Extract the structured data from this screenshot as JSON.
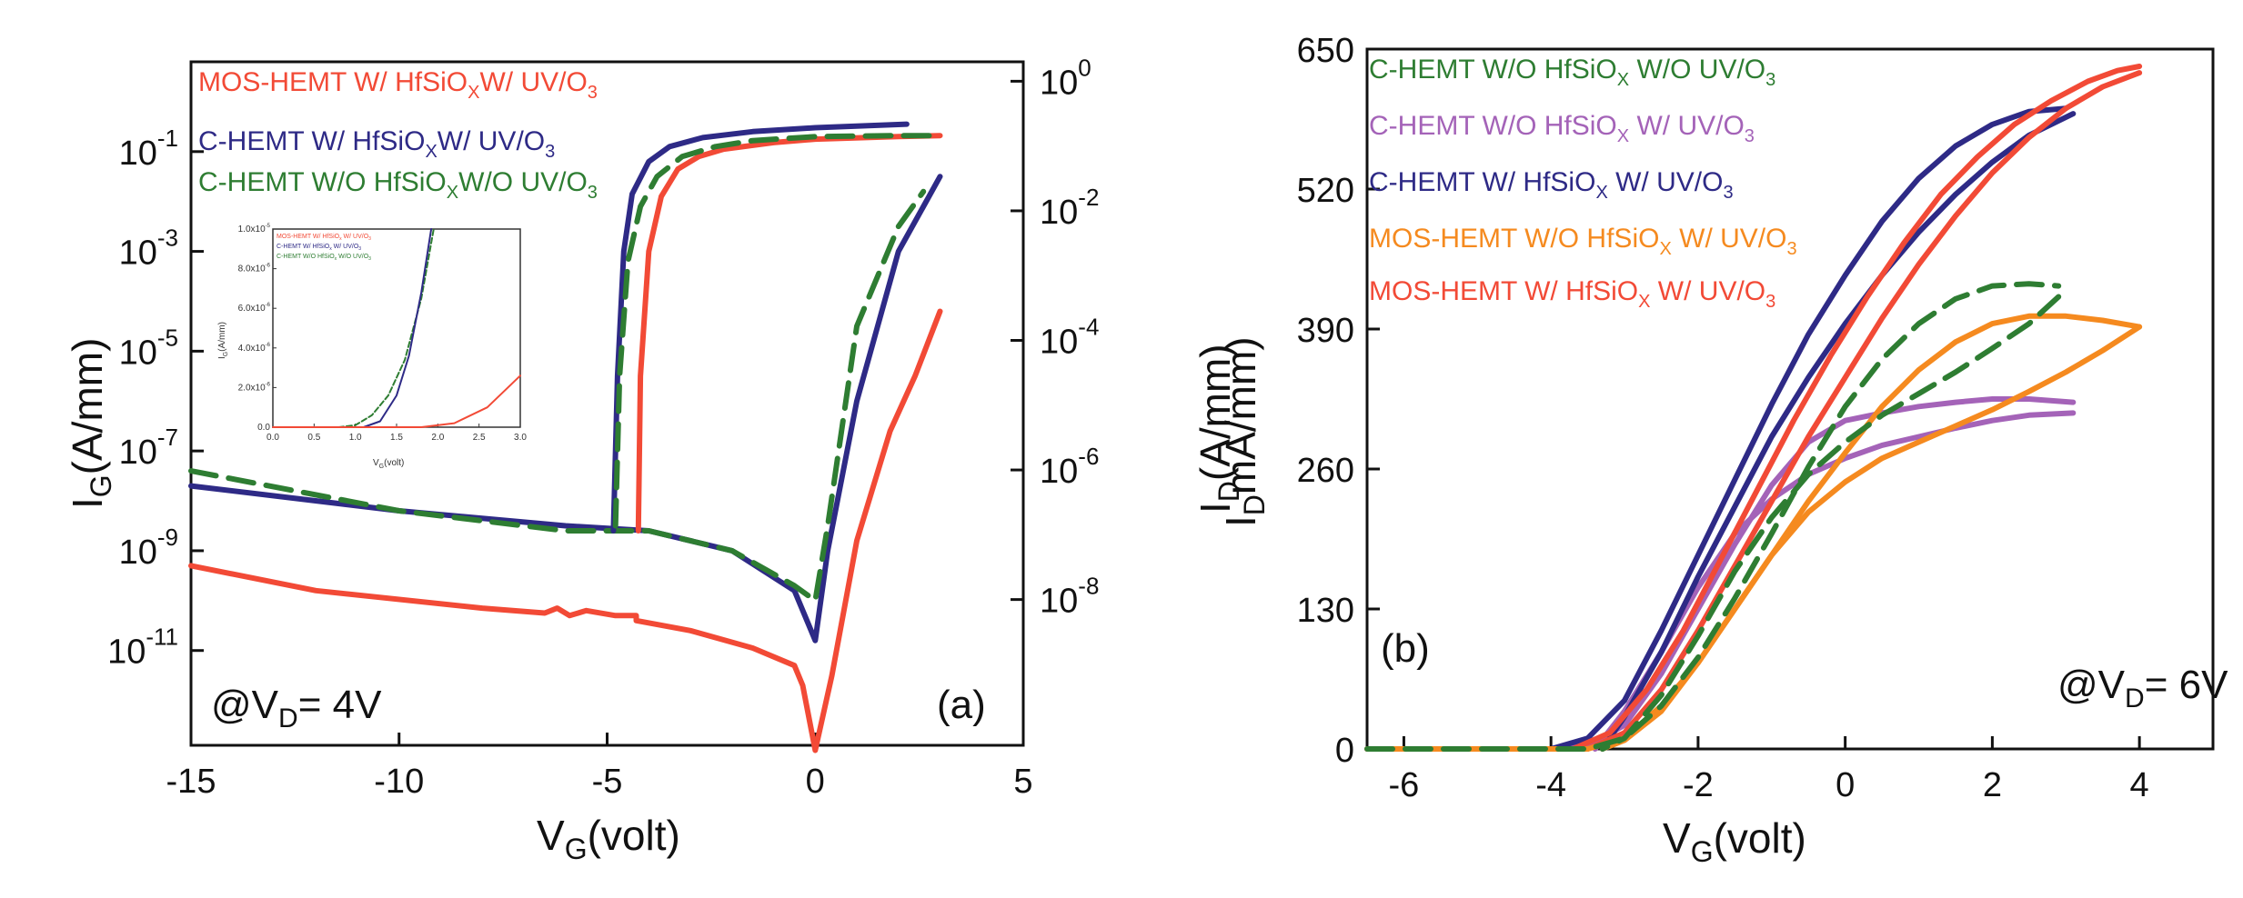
{
  "chart_data": [
    {
      "panel": "a",
      "type": "line",
      "xlabel": "V",
      "xlabel_sub": "G",
      "xlabel_tail": "(volt)",
      "ylabel_left": "I",
      "ylabel_left_sub": "G",
      "ylabel_left_tail": "(A/mm)",
      "ylabel_right": "I",
      "ylabel_right_sub": "D",
      "ylabel_right_tail": "(A/mm)",
      "xlim": [
        -15,
        5
      ],
      "ylim_left_log10": [
        -12.9,
        0.8
      ],
      "ylim_right_log10": [
        -10.25,
        0.3
      ],
      "x_ticks": [
        "-15",
        "-10",
        "-5",
        "0",
        "5"
      ],
      "y_left_ticks": [
        {
          "m": "10",
          "e": "-1",
          "v": -1
        },
        {
          "m": "10",
          "e": "-3",
          "v": -3
        },
        {
          "m": "10",
          "e": "-5",
          "v": -5
        },
        {
          "m": "10",
          "e": "-7",
          "v": -7
        },
        {
          "m": "10",
          "e": "-9",
          "v": -9
        },
        {
          "m": "10",
          "e": "-11",
          "v": -11
        }
      ],
      "y_right_ticks": [
        {
          "m": "10",
          "e": "0",
          "v": 0
        },
        {
          "m": "10",
          "e": "-2",
          "v": -2
        },
        {
          "m": "10",
          "e": "-4",
          "v": -4
        },
        {
          "m": "10",
          "e": "-6",
          "v": -6
        },
        {
          "m": "10",
          "e": "-8",
          "v": -8
        }
      ],
      "annotation": {
        "pre": "@V",
        "sub": "D",
        "post": "= 4V"
      },
      "panel_label": "(a)",
      "legend": [
        {
          "pre": "MOS-HEMT W/ HfSiO",
          "sub": "X",
          "mid": "W/ UV/O",
          "sub2": "3",
          "color": "#f24a36"
        },
        {
          "pre": "C-HEMT W/ HfSiO",
          "sub": "X",
          "mid": "W/ UV/O",
          "sub2": "3",
          "color": "#2e2a86"
        },
        {
          "pre": "C-HEMT W/O HfSiO",
          "sub": "X",
          "mid": "W/O UV/O",
          "sub2": "3",
          "color": "#2e7d32"
        }
      ],
      "series": [
        {
          "name": "MOS-HEMT W/ HfSiOX W/ UV/O3 (IG)",
          "axis": "left",
          "color": "#f24a36",
          "dash": false,
          "x": [
            -15,
            -12,
            -8,
            -6.5,
            -6.2,
            -5.9,
            -5.5,
            -4.8,
            -4.3,
            -4.3,
            -3,
            -1.5,
            -0.5,
            -0.3,
            0,
            0.4,
            1,
            1.8,
            2.4,
            3
          ],
          "y": [
            -9.3,
            -9.8,
            -10.15,
            -10.25,
            -10.15,
            -10.3,
            -10.2,
            -10.3,
            -10.3,
            -10.4,
            -10.6,
            -10.95,
            -11.3,
            -11.7,
            -13,
            -11.5,
            -8.8,
            -6.6,
            -5.5,
            -4.2
          ]
        },
        {
          "name": "C-HEMT W/ HfSiOX W/ UV/O3 (IG)",
          "axis": "left",
          "color": "#2e2a86",
          "dash": false,
          "x": [
            -15,
            -10,
            -6,
            -4,
            -2,
            -0.5,
            0,
            0.3,
            1,
            2,
            3
          ],
          "y": [
            -7.7,
            -8.2,
            -8.5,
            -8.6,
            -9.0,
            -9.8,
            -10.8,
            -9.0,
            -6.0,
            -3.0,
            -1.5
          ]
        },
        {
          "name": "C-HEMT W/O HfSiOX W/O UV/O3 (IG)",
          "axis": "left",
          "color": "#2e7d32",
          "dash": true,
          "x": [
            -15,
            -10,
            -6,
            -4,
            -2,
            -0.5,
            0,
            0.3,
            1,
            2,
            2.6
          ],
          "y": [
            -7.4,
            -8.2,
            -8.6,
            -8.6,
            -9.0,
            -9.7,
            -10.0,
            -8.5,
            -4.5,
            -2.5,
            -1.8
          ]
        },
        {
          "name": "MOS-HEMT W/ HfSiOX W/ UV/O3 (ID)",
          "axis": "left",
          "color": "#f24a36",
          "dash": false,
          "x": [
            -4.25,
            -4.2,
            -4.0,
            -3.7,
            -3.3,
            -2.8,
            -2.2,
            -1.0,
            0,
            2,
            3
          ],
          "y": [
            -8.6,
            -5.5,
            -3.0,
            -1.9,
            -1.35,
            -1.1,
            -0.95,
            -0.82,
            -0.75,
            -0.7,
            -0.68
          ]
        },
        {
          "name": "C-HEMT W/ HfSiOX W/ UV/O3 (ID)",
          "axis": "left",
          "color": "#2e2a86",
          "dash": false,
          "x": [
            -4.85,
            -4.75,
            -4.6,
            -4.4,
            -4.0,
            -3.5,
            -2.7,
            -1.5,
            0,
            2.2
          ],
          "y": [
            -8.6,
            -5.5,
            -3.0,
            -1.85,
            -1.2,
            -0.9,
            -0.72,
            -0.6,
            -0.52,
            -0.45
          ]
        },
        {
          "name": "C-HEMT W/O HfSiOX W/O UV/O3 (ID)",
          "axis": "left",
          "color": "#2e7d32",
          "dash": true,
          "x": [
            -4.8,
            -4.7,
            -4.5,
            -4.2,
            -3.8,
            -3.2,
            -2.4,
            -1.5,
            0,
            2,
            3
          ],
          "y": [
            -8.5,
            -5.5,
            -3.2,
            -2.1,
            -1.5,
            -1.1,
            -0.9,
            -0.78,
            -0.7,
            -0.68,
            -0.68
          ]
        }
      ]
    },
    {
      "panel": "a-inset",
      "type": "line",
      "xlabel": "V",
      "xlabel_sub": "G",
      "xlabel_tail": "(volt)",
      "ylabel": "I",
      "ylabel_sub": "G",
      "ylabel_tail": "(A/mm)",
      "xlim": [
        0,
        3
      ],
      "ylim": [
        0,
        1e-05
      ],
      "x_ticks": [
        "0.0",
        "0.5",
        "1.0",
        "1.5",
        "2.0",
        "2.5",
        "3.0"
      ],
      "y_ticks": [
        {
          "m": "0.0",
          "e": "",
          "v": 0
        },
        {
          "m": "2.0x10",
          "e": "-6",
          "v": 2e-06
        },
        {
          "m": "4.0x10",
          "e": "-6",
          "v": 4e-06
        },
        {
          "m": "6.0x10",
          "e": "-6",
          "v": 6e-06
        },
        {
          "m": "8.0x10",
          "e": "-6",
          "v": 8e-06
        },
        {
          "m": "1.0x10",
          "e": "-5",
          "v": 1e-05
        }
      ],
      "legend": [
        {
          "pre": "MOS-HEMT W/ HfSiO",
          "sub": "x",
          "mid": " W/ UV/O",
          "sub2": "3",
          "color": "#f24a36"
        },
        {
          "pre": "C-HEMT W/ HfSiO",
          "sub": "x",
          "mid": " W/ UV/O",
          "sub2": "3",
          "color": "#2e2a86"
        },
        {
          "pre": "C-HEMT W/O HfSiO",
          "sub": "x",
          "mid": " W/O UV/O",
          "sub2": "3",
          "color": "#2e7d32"
        }
      ],
      "series": [
        {
          "name": "C-HEMT W/O",
          "color": "#2e7d32",
          "dash": true,
          "x": [
            0,
            0.8,
            1.0,
            1.2,
            1.4,
            1.6,
            1.8,
            1.95
          ],
          "y": [
            0,
            0,
            1e-07,
            6e-07,
            1.6e-06,
            3.4e-06,
            6.5e-06,
            1e-05
          ]
        },
        {
          "name": "C-HEMT W/",
          "color": "#2e2a86",
          "dash": false,
          "x": [
            0,
            1.1,
            1.3,
            1.5,
            1.65,
            1.8,
            1.92
          ],
          "y": [
            0,
            0,
            3e-07,
            1.6e-06,
            3.6e-06,
            6.8e-06,
            1e-05
          ]
        },
        {
          "name": "MOS-HEMT W/",
          "color": "#f24a36",
          "dash": false,
          "x": [
            0,
            1.8,
            2.2,
            2.6,
            3.0
          ],
          "y": [
            0,
            0,
            2e-07,
            1e-06,
            2.6e-06
          ]
        }
      ]
    },
    {
      "panel": "b",
      "type": "line",
      "xlabel": "V",
      "xlabel_sub": "G",
      "xlabel_tail": "(volt)",
      "ylabel": "I",
      "ylabel_sub": "D",
      "ylabel_tail": "mA/mm)",
      "xlim": [
        -6.5,
        5
      ],
      "ylim": [
        0,
        650
      ],
      "x_ticks": [
        -6,
        -4,
        -2,
        0,
        2,
        4
      ],
      "y_ticks": [
        0,
        130,
        260,
        390,
        520,
        650
      ],
      "annotation": {
        "pre": "@V",
        "sub": "D",
        "post": "= 6V"
      },
      "panel_label": "(b)",
      "legend": [
        {
          "pre": "C-HEMT W/O HfSiO",
          "sub": "X",
          "mid": " W/O UV/O",
          "sub2": "3",
          "color": "#2e7d32"
        },
        {
          "pre": "C-HEMT W/O HfSiO",
          "sub": "X",
          "mid": " W/ UV/O",
          "sub2": "3",
          "color": "#a463b8"
        },
        {
          "pre": "C-HEMT W/ HfSiO",
          "sub": "X",
          "mid": " W/ UV/O",
          "sub2": "3",
          "color": "#2e2a86"
        },
        {
          "pre": "MOS-HEMT W/O HfSiO",
          "sub": "X",
          "mid": " W/ UV/O",
          "sub2": "3",
          "color": "#f58a1f"
        },
        {
          "pre": "MOS-HEMT W/ HfSiO",
          "sub": "X",
          "mid": " W/ UV/O",
          "sub2": "3",
          "color": "#f24a36"
        }
      ],
      "series": [
        {
          "name": "C-HEMT W/O HfSiOX W/ UV/O3 (forward)",
          "color": "#a463b8",
          "dash": false,
          "x": [
            -6.5,
            -4,
            -3.5,
            -3,
            -2.5,
            -2,
            -1.5,
            -1,
            -0.5,
            0,
            0.5,
            1,
            1.5,
            2,
            2.5,
            3.1
          ],
          "y": [
            0,
            0,
            3,
            22,
            70,
            130,
            190,
            245,
            285,
            305,
            312,
            318,
            322,
            325,
            325,
            322
          ]
        },
        {
          "name": "C-HEMT W/O HfSiOX W/ UV/O3 (reverse)",
          "color": "#a463b8",
          "dash": false,
          "x": [
            3.1,
            2.5,
            2,
            1.5,
            1,
            0.5,
            0,
            -0.5,
            -1,
            -1.5,
            -2,
            -2.5,
            -3,
            -3.4
          ],
          "y": [
            312,
            310,
            305,
            298,
            290,
            282,
            270,
            255,
            232,
            200,
            150,
            90,
            35,
            0
          ]
        },
        {
          "name": "C-HEMT W/ HfSiOX W/ UV/O3 (forward)",
          "color": "#2e2a86",
          "dash": false,
          "x": [
            -6.5,
            -4,
            -3.5,
            -3,
            -2.5,
            -2,
            -1.5,
            -1,
            -0.5,
            0,
            0.5,
            1,
            1.5,
            2,
            2.5,
            3
          ],
          "y": [
            0,
            0,
            10,
            45,
            110,
            180,
            250,
            320,
            385,
            440,
            490,
            530,
            560,
            580,
            592,
            595
          ]
        },
        {
          "name": "C-HEMT W/ HfSiOX W/ UV/O3 (reverse)",
          "color": "#2e2a86",
          "dash": false,
          "x": [
            3.1,
            2.5,
            2,
            1.5,
            1,
            0.5,
            0,
            -0.5,
            -1,
            -1.5,
            -2,
            -2.5,
            -3,
            -3.3
          ],
          "y": [
            590,
            570,
            545,
            515,
            480,
            440,
            395,
            345,
            290,
            225,
            160,
            90,
            30,
            0
          ]
        },
        {
          "name": "MOS-HEMT W/ HfSiOX W/ UV/O3 (forward)",
          "color": "#f24a36",
          "dash": false,
          "x": [
            -6.5,
            -3.7,
            -3.2,
            -2.7,
            -2.2,
            -1.7,
            -1.2,
            -0.7,
            -0.2,
            0.3,
            0.8,
            1.3,
            1.8,
            2.3,
            2.8,
            3.3,
            3.7,
            4.0
          ],
          "y": [
            0,
            0,
            15,
            55,
            110,
            175,
            240,
            305,
            365,
            420,
            470,
            515,
            550,
            580,
            602,
            620,
            630,
            634
          ]
        },
        {
          "name": "MOS-HEMT W/ HfSiOX W/ UV/O3 (reverse)",
          "color": "#f24a36",
          "dash": false,
          "x": [
            4.0,
            3.5,
            3,
            2.5,
            2,
            1.5,
            1,
            0.5,
            0,
            -0.5,
            -1,
            -1.5,
            -2,
            -2.5,
            -3,
            -3.5
          ],
          "y": [
            628,
            615,
            595,
            568,
            535,
            495,
            450,
            400,
            345,
            290,
            230,
            170,
            110,
            55,
            15,
            0
          ]
        },
        {
          "name": "MOS-HEMT W/O HfSiOX W/ UV/O3 (forward)",
          "color": "#f58a1f",
          "dash": false,
          "x": [
            -6.5,
            -3.5,
            -3,
            -2.5,
            -2,
            -1.5,
            -1,
            -0.5,
            0,
            0.5,
            1,
            1.5,
            2,
            2.5,
            3,
            3.5,
            4.0
          ],
          "y": [
            0,
            0,
            10,
            40,
            80,
            130,
            180,
            230,
            275,
            318,
            352,
            378,
            395,
            402,
            402,
            398,
            392
          ]
        },
        {
          "name": "MOS-HEMT W/O HfSiOX W/ UV/O3 (reverse)",
          "color": "#f58a1f",
          "dash": false,
          "x": [
            4.0,
            3.5,
            3,
            2.5,
            2,
            1.5,
            1,
            0.5,
            0,
            -0.5,
            -1,
            -1.5,
            -2,
            -2.5,
            -3,
            -3.3
          ],
          "y": [
            392,
            370,
            350,
            332,
            315,
            300,
            285,
            270,
            248,
            220,
            180,
            130,
            80,
            35,
            8,
            0
          ]
        },
        {
          "name": "C-HEMT W/O HfSiOX W/O UV/O3 (forward)",
          "color": "#2e7d32",
          "dash": true,
          "x": [
            -6.5,
            -3.5,
            -3,
            -2.5,
            -2,
            -1.5,
            -1,
            -0.5,
            0,
            0.5,
            1,
            1.5,
            2,
            2.5,
            2.9
          ],
          "y": [
            0,
            0,
            10,
            40,
            85,
            140,
            200,
            262,
            318,
            362,
            395,
            418,
            430,
            432,
            430
          ]
        },
        {
          "name": "C-HEMT W/O HfSiOX W/O UV/O3 (reverse)",
          "color": "#2e7d32",
          "dash": true,
          "x": [
            2.9,
            2.5,
            2,
            1.5,
            1,
            0.5,
            0,
            -0.5,
            -1,
            -1.5,
            -2,
            -2.5,
            -3,
            -3.3
          ],
          "y": [
            420,
            395,
            372,
            350,
            330,
            310,
            285,
            255,
            215,
            165,
            105,
            50,
            10,
            0
          ]
        }
      ]
    }
  ]
}
